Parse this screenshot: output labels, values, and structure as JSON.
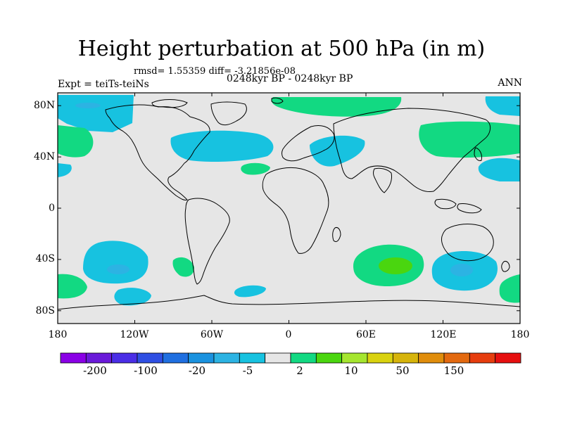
{
  "title": "Height perturbation at 500 hPa (in m)",
  "stats": "rmsd= 1.55359 diff= -3.21856e-08",
  "period": "0248kyr BP - 0248kyr BP",
  "experiment": "Expt = teiTs-teiNs",
  "season": "ANN",
  "map": {
    "lat_labels": [
      "80N",
      "40N",
      "0",
      "40S",
      "80S"
    ],
    "lat_values": [
      80,
      40,
      0,
      -40,
      -80
    ],
    "lon_labels": [
      "180",
      "120W",
      "60W",
      "0",
      "60E",
      "120E",
      "180"
    ],
    "lon_values": [
      -180,
      -120,
      -60,
      0,
      60,
      120,
      180
    ],
    "lat_range": [
      -90,
      90
    ],
    "lon_range": [
      -180,
      180
    ]
  },
  "colorbar": {
    "colors": [
      "#8a00e6",
      "#6a1ad9",
      "#4a2ee6",
      "#2f4fe3",
      "#1f6fe0",
      "#1a92df",
      "#2cb3e3",
      "#17c2e0",
      "#e6e6e6",
      "#12d982",
      "#4ad60f",
      "#a5e62f",
      "#d9d20f",
      "#d6b40b",
      "#e08d0c",
      "#e3690f",
      "#e63d0e",
      "#e60f0f"
    ],
    "labels": [
      "-200",
      "-100",
      "-20",
      "-5",
      "2",
      "10",
      "50",
      "150"
    ],
    "label_after_box": [
      1,
      3,
      5,
      7,
      8,
      10,
      12,
      14
    ]
  },
  "colors": {
    "land_fill": "#e6e6e6",
    "neg_light": "#17c2e0",
    "neg_mid": "#2cb3e3",
    "pos_light": "#12d982",
    "pos_mid": "#4ad60f"
  }
}
